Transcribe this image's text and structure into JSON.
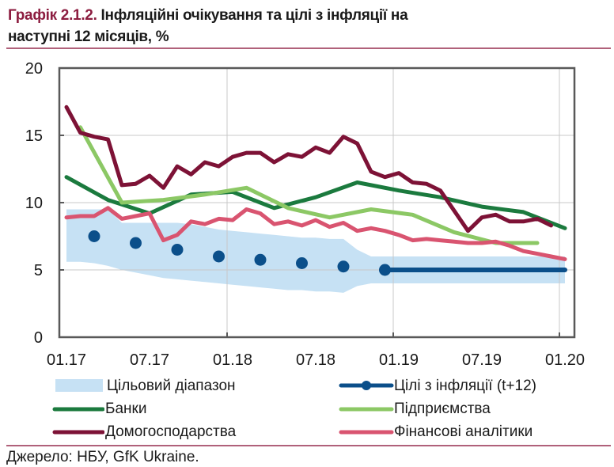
{
  "title": {
    "number": "Графік 2.1.2.",
    "line1_rest": " Інфляційні очікування та цілі з інфляції на",
    "line2": "наступні 12 місяців, %"
  },
  "source": "Джерело: НБУ, GfK Ukraine.",
  "colors": {
    "banks": "#1b7a3e",
    "businesses": "#8cc865",
    "households": "#7d1236",
    "analysts": "#d95470",
    "target": "#0b4f8a",
    "band": "#c6e1f4",
    "title_accent": "#8c1d40",
    "rule": "#b0617a"
  },
  "chart_data": {
    "type": "line",
    "title": "Графік 2.1.2. Інфляційні очікування та цілі з інфляції на наступні 12 місяців, %",
    "xlabel": "",
    "ylabel": "%",
    "ylim": [
      0,
      20
    ],
    "yticks": [
      "0",
      "5",
      "10",
      "15",
      "20"
    ],
    "xticks": [
      "01.17",
      "07.17",
      "01.18",
      "07.18",
      "01.19",
      "07.19",
      "01.20"
    ],
    "xtick_month_index": [
      0,
      6,
      12,
      18,
      24,
      30,
      36
    ],
    "x_start": "01.17",
    "x_end": "01.20",
    "grid": "vertical at year starts, horizontal at 5-step",
    "legend_placement": "bottom",
    "band": {
      "name": "Цільовий діапазон",
      "month_index": [
        0,
        1,
        2,
        3,
        4,
        5,
        6,
        7,
        8,
        9,
        10,
        11,
        12,
        13,
        14,
        15,
        16,
        17,
        18,
        19,
        20,
        21,
        22,
        23,
        24,
        25,
        26,
        27,
        28,
        29,
        30,
        31,
        32,
        33,
        34,
        35,
        36
      ],
      "lower": [
        5.6,
        5.6,
        5.5,
        5.3,
        5.0,
        4.8,
        4.6,
        4.4,
        4.3,
        4.2,
        4.1,
        4.0,
        3.9,
        3.8,
        3.7,
        3.6,
        3.5,
        3.5,
        3.4,
        3.4,
        3.3,
        3.8,
        4.0,
        4.0,
        4.0,
        4.0,
        4.0,
        4.0,
        4.0,
        4.0,
        4.0,
        4.0,
        4.0,
        4.0,
        4.0,
        4.0,
        4.0
      ],
      "upper": [
        9.5,
        9.5,
        9.5,
        9.5,
        8.5,
        8.5,
        8.5,
        8.5,
        8.5,
        8.4,
        8.2,
        8.0,
        7.9,
        7.8,
        7.7,
        7.6,
        7.5,
        7.4,
        7.4,
        7.3,
        7.3,
        6.5,
        6.0,
        6.0,
        6.0,
        6.0,
        6.0,
        6.0,
        6.0,
        6.0,
        6.0,
        6.0,
        6.0,
        6.0,
        6.0,
        6.0,
        6.0
      ]
    },
    "series": [
      {
        "key": "targets",
        "name": "Цілі з інфляції (t+12)",
        "points_month_index": [
          2,
          5,
          8,
          11,
          14,
          17,
          20,
          23
        ],
        "points": [
          7.5,
          7.0,
          6.5,
          6.0,
          5.75,
          5.5,
          5.25,
          5.0
        ],
        "line_month_index": [
          23,
          36
        ],
        "line": [
          5.0,
          5.0
        ]
      },
      {
        "key": "banks",
        "name": "Банки",
        "month_index": [
          0,
          3,
          6,
          9,
          12,
          15,
          18,
          21,
          24,
          27,
          30,
          33,
          36
        ],
        "values": [
          11.9,
          10.2,
          9.2,
          10.6,
          10.8,
          9.6,
          10.4,
          11.5,
          10.9,
          10.4,
          9.7,
          9.3,
          8.1
        ]
      },
      {
        "key": "businesses",
        "name": "Підприємства",
        "month_index": [
          1,
          4,
          7,
          10,
          13,
          16,
          19,
          22,
          25,
          28,
          31,
          34
        ],
        "values": [
          15.6,
          10.0,
          10.2,
          10.6,
          11.1,
          9.6,
          8.9,
          9.5,
          9.1,
          7.8,
          7.0,
          7.0
        ]
      },
      {
        "key": "households",
        "name": "Домогосподарства",
        "month_index": [
          0,
          1,
          2,
          3,
          4,
          5,
          6,
          7,
          8,
          9,
          10,
          11,
          12,
          13,
          14,
          15,
          16,
          17,
          18,
          19,
          20,
          21,
          22,
          23,
          24,
          25,
          26,
          27,
          28,
          29,
          30,
          31,
          32,
          33,
          34,
          35
        ],
        "values": [
          17.1,
          15.2,
          14.9,
          14.7,
          11.3,
          11.4,
          12.0,
          11.1,
          12.7,
          12.1,
          13.0,
          12.7,
          13.4,
          13.7,
          13.7,
          13.0,
          13.6,
          13.4,
          14.1,
          13.7,
          14.9,
          14.4,
          12.3,
          11.9,
          12.2,
          11.5,
          11.4,
          10.9,
          9.4,
          7.9,
          8.9,
          9.1,
          8.6,
          8.6,
          8.8,
          8.3
        ]
      },
      {
        "key": "analysts",
        "name": "Фінансові аналітики",
        "month_index": [
          0,
          1,
          2,
          3,
          4,
          5,
          6,
          7,
          8,
          9,
          10,
          11,
          12,
          13,
          14,
          15,
          16,
          17,
          18,
          19,
          20,
          21,
          22,
          23,
          24,
          25,
          26,
          27,
          28,
          29,
          30,
          31,
          32,
          33,
          34,
          35,
          36
        ],
        "values": [
          8.9,
          9.0,
          9.0,
          9.6,
          8.8,
          9.0,
          9.2,
          7.2,
          7.6,
          8.6,
          8.4,
          8.8,
          8.7,
          9.5,
          9.2,
          8.4,
          8.6,
          8.3,
          8.7,
          8.2,
          8.5,
          7.9,
          8.1,
          7.9,
          7.6,
          7.2,
          7.3,
          7.2,
          7.1,
          7.0,
          7.0,
          7.1,
          6.8,
          6.4,
          6.2,
          6.0,
          5.8
        ]
      }
    ]
  },
  "legend": {
    "band": "Цільовий діапазон",
    "targets": "Цілі з інфляції (t+12)",
    "banks": "Банки",
    "businesses": "Підприємства",
    "households": "Домогосподарства",
    "analysts": "Фінансові аналітики"
  }
}
